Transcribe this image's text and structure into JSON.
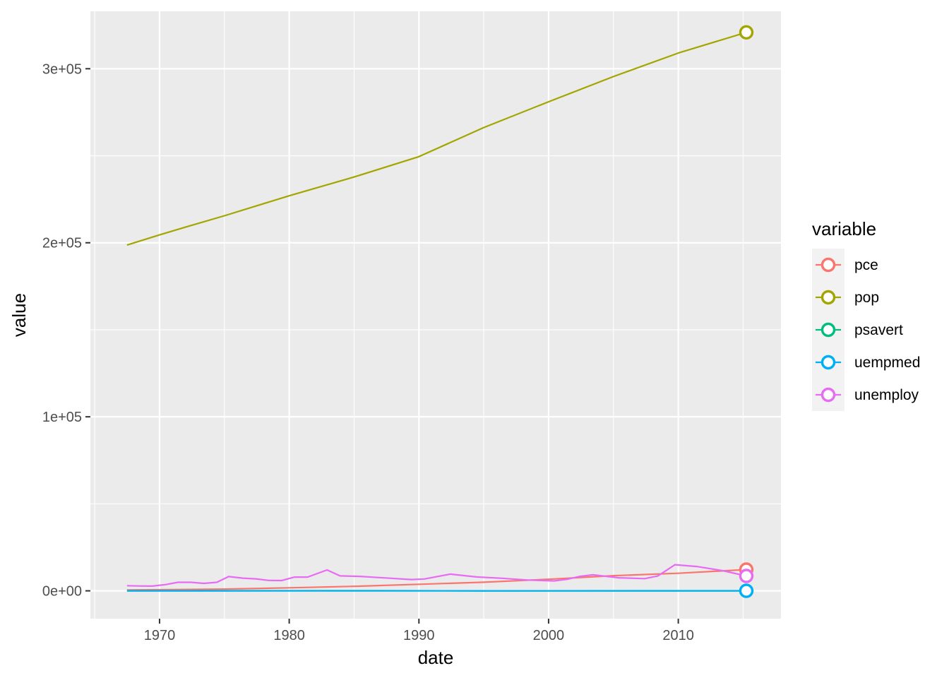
{
  "chart_data": {
    "type": "line",
    "title": "",
    "xlabel": "date",
    "ylabel": "value",
    "xlim": [
      "1964-09-01",
      "2017-12-01"
    ],
    "ylim": [
      -16000,
      333000
    ],
    "x_ticks": [
      "1970",
      "1980",
      "1990",
      "2000",
      "2010"
    ],
    "y_ticks": [
      {
        "value": 0,
        "label": "0e+00"
      },
      {
        "value": 100000,
        "label": "1e+05"
      },
      {
        "value": 200000,
        "label": "2e+05"
      },
      {
        "value": 300000,
        "label": "3e+05"
      }
    ],
    "grid": true,
    "panel_background": "#ebebeb",
    "grid_color": "#ffffff",
    "legend": {
      "title": "variable",
      "position": "right",
      "marker": "open-circle"
    },
    "end_point_marker": "open-circle",
    "series": [
      {
        "name": "pce",
        "color": "#F8766D",
        "points": [
          [
            "1967-07-01",
            507
          ],
          [
            "1970-01-01",
            620
          ],
          [
            "1975-01-01",
            1000
          ],
          [
            "1980-01-01",
            1750
          ],
          [
            "1985-01-01",
            2600
          ],
          [
            "1990-01-01",
            3750
          ],
          [
            "1995-01-01",
            4950
          ],
          [
            "2000-01-01",
            6650
          ],
          [
            "2005-01-01",
            8700
          ],
          [
            "2010-01-01",
            10100
          ],
          [
            "2015-04-01",
            12200
          ]
        ]
      },
      {
        "name": "pop",
        "color": "#A3A500",
        "points": [
          [
            "1967-07-01",
            198712
          ],
          [
            "1970-01-01",
            204500
          ],
          [
            "1972-01-01",
            209000
          ],
          [
            "1975-01-01",
            215500
          ],
          [
            "1980-01-01",
            227000
          ],
          [
            "1985-01-01",
            237800
          ],
          [
            "1990-01-01",
            249500
          ],
          [
            "1995-01-01",
            266200
          ],
          [
            "2000-01-01",
            281000
          ],
          [
            "2005-01-01",
            295500
          ],
          [
            "2010-01-01",
            309000
          ],
          [
            "2015-04-01",
            320900
          ]
        ]
      },
      {
        "name": "psavert",
        "color": "#00BF7D",
        "points": [
          [
            "1967-07-01",
            12.6
          ],
          [
            "1975-01-01",
            13.0
          ],
          [
            "1985-01-01",
            10.0
          ],
          [
            "1995-01-01",
            6.0
          ],
          [
            "2005-01-01",
            2.5
          ],
          [
            "2015-04-01",
            7.6
          ]
        ]
      },
      {
        "name": "uempmed",
        "color": "#00B0F6",
        "points": [
          [
            "1967-07-01",
            4.5
          ],
          [
            "1975-01-01",
            8.0
          ],
          [
            "1983-01-01",
            10.0
          ],
          [
            "1995-01-01",
            8.0
          ],
          [
            "2010-07-01",
            22.0
          ],
          [
            "2015-04-01",
            11.3
          ]
        ]
      },
      {
        "name": "unemploy",
        "color": "#E76BF3",
        "points": [
          [
            "1967-07-01",
            2944
          ],
          [
            "1968-06-01",
            2800
          ],
          [
            "1969-06-01",
            2700
          ],
          [
            "1970-06-01",
            3500
          ],
          [
            "1971-06-01",
            4900
          ],
          [
            "1972-06-01",
            4900
          ],
          [
            "1973-06-01",
            4300
          ],
          [
            "1974-06-01",
            4900
          ],
          [
            "1975-05-01",
            8200
          ],
          [
            "1976-06-01",
            7300
          ],
          [
            "1977-06-01",
            6900
          ],
          [
            "1978-06-01",
            6000
          ],
          [
            "1979-06-01",
            5900
          ],
          [
            "1980-06-01",
            7900
          ],
          [
            "1981-06-01",
            7900
          ],
          [
            "1982-12-01",
            12000
          ],
          [
            "1983-12-01",
            8600
          ],
          [
            "1985-06-01",
            8300
          ],
          [
            "1987-06-01",
            7400
          ],
          [
            "1989-06-01",
            6500
          ],
          [
            "1990-06-01",
            6800
          ],
          [
            "1992-06-01",
            9600
          ],
          [
            "1994-06-01",
            8000
          ],
          [
            "1996-06-01",
            7200
          ],
          [
            "1998-06-01",
            6200
          ],
          [
            "2000-06-01",
            5700
          ],
          [
            "2001-06-01",
            6600
          ],
          [
            "2002-06-01",
            8300
          ],
          [
            "2003-06-01",
            9200
          ],
          [
            "2005-06-01",
            7500
          ],
          [
            "2007-06-01",
            7000
          ],
          [
            "2008-06-01",
            8500
          ],
          [
            "2009-10-01",
            15000
          ],
          [
            "2010-06-01",
            14600
          ],
          [
            "2011-06-01",
            14000
          ],
          [
            "2013-06-01",
            11600
          ],
          [
            "2015-04-01",
            8549
          ]
        ]
      }
    ]
  }
}
